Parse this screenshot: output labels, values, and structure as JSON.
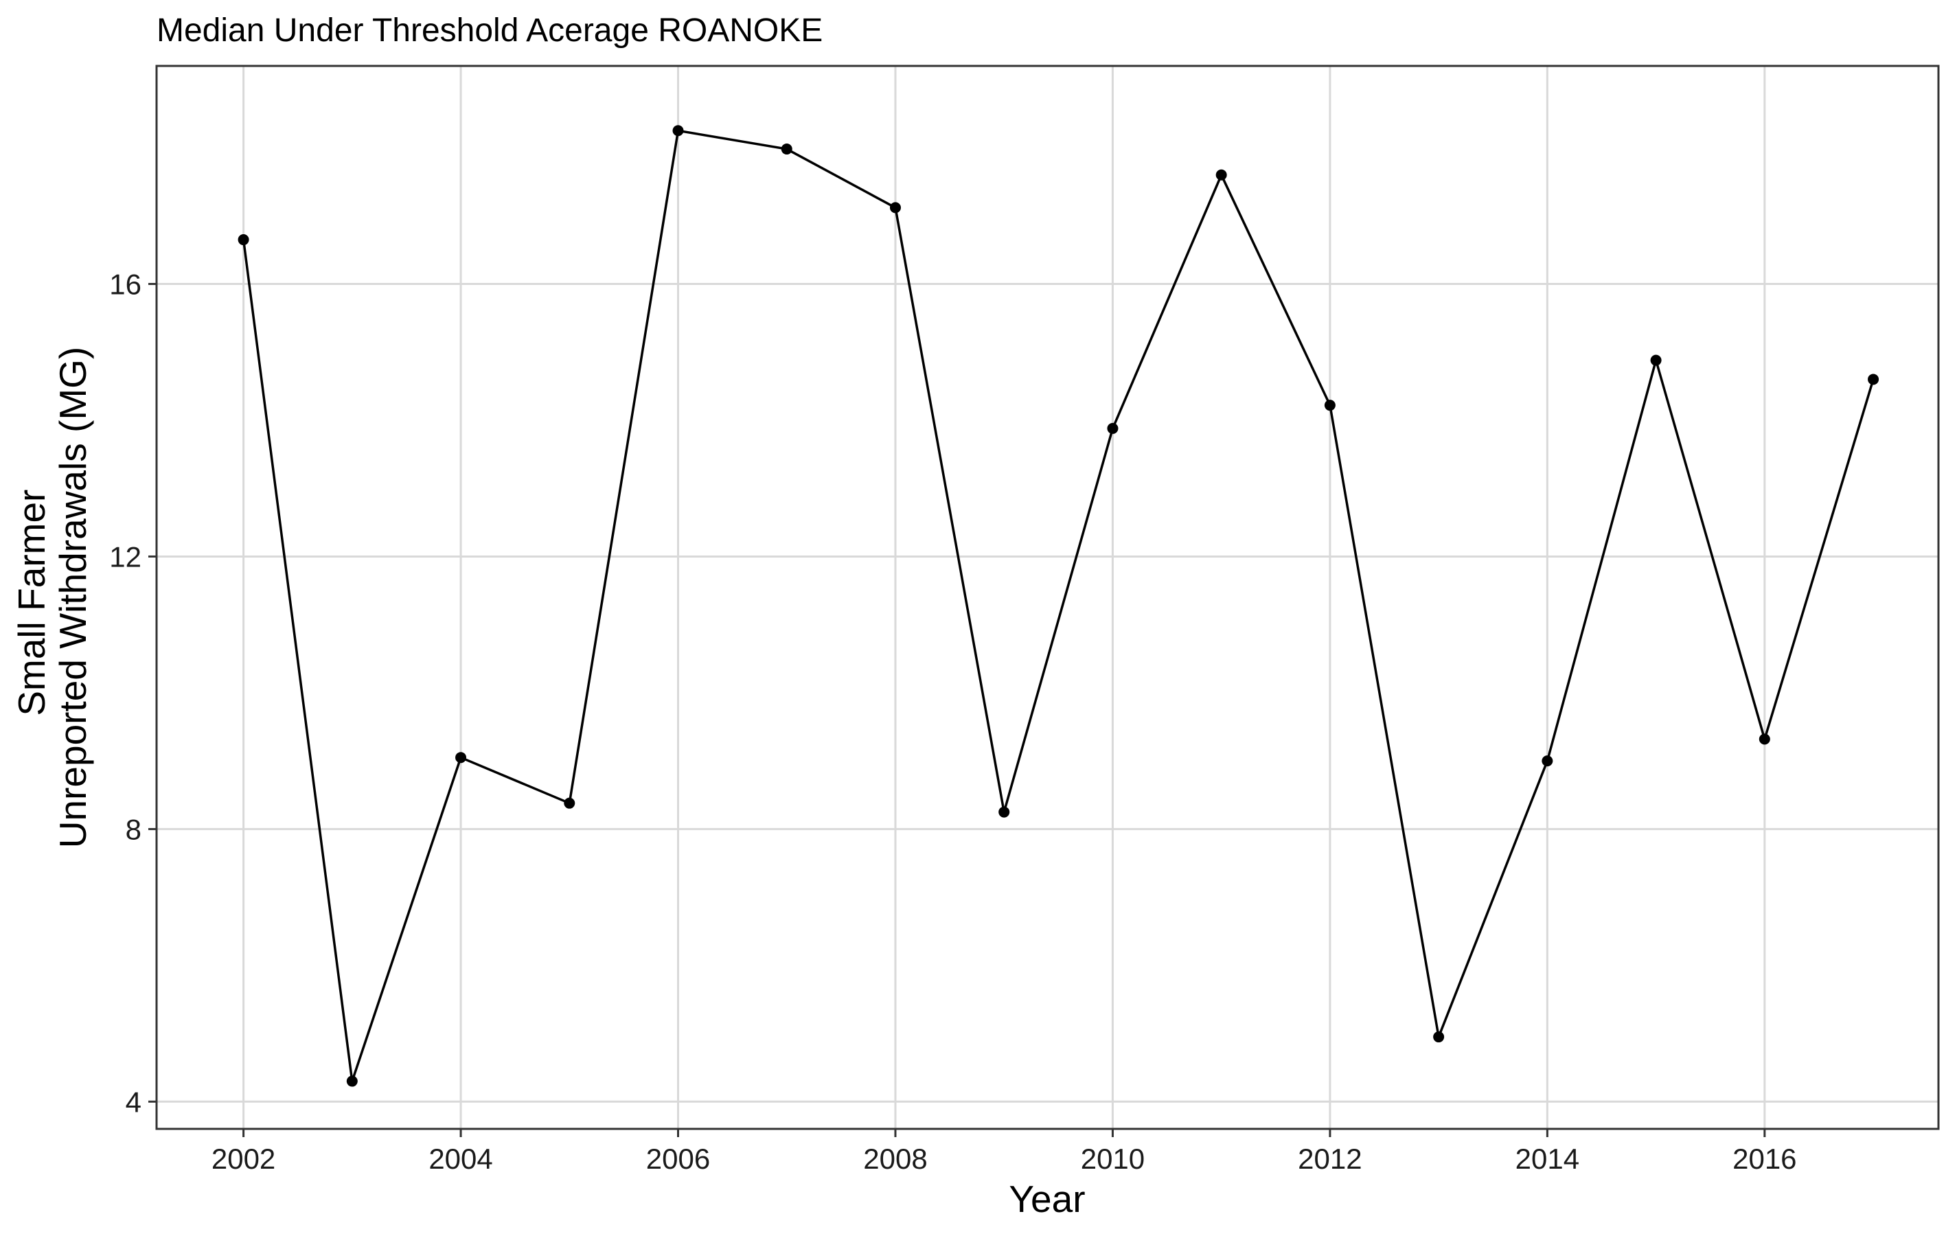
{
  "chart_data": {
    "type": "line",
    "title": "Median Under Threshold Acerage ROANOKE",
    "xlabel": "Year",
    "ylabel_lines": [
      "Small Farmer",
      "Unreported Withdrawals (MG)"
    ],
    "x": [
      2002,
      2003,
      2004,
      2005,
      2006,
      2007,
      2008,
      2009,
      2010,
      2011,
      2012,
      2013,
      2014,
      2015,
      2016,
      2017
    ],
    "y": [
      16.65,
      4.3,
      9.05,
      8.38,
      18.25,
      17.98,
      17.12,
      8.25,
      13.88,
      17.6,
      14.22,
      4.95,
      9.0,
      14.88,
      9.32,
      14.6
    ],
    "x_ticks": [
      "2002",
      "2004",
      "2006",
      "2008",
      "2010",
      "2012",
      "2014",
      "2016"
    ],
    "y_ticks": [
      "4",
      "8",
      "12",
      "16"
    ],
    "xlim": [
      2001.2,
      2017.6
    ],
    "ylim": [
      3.6,
      19.2
    ],
    "grid": true,
    "legend": "none",
    "line_color": "#000000"
  }
}
